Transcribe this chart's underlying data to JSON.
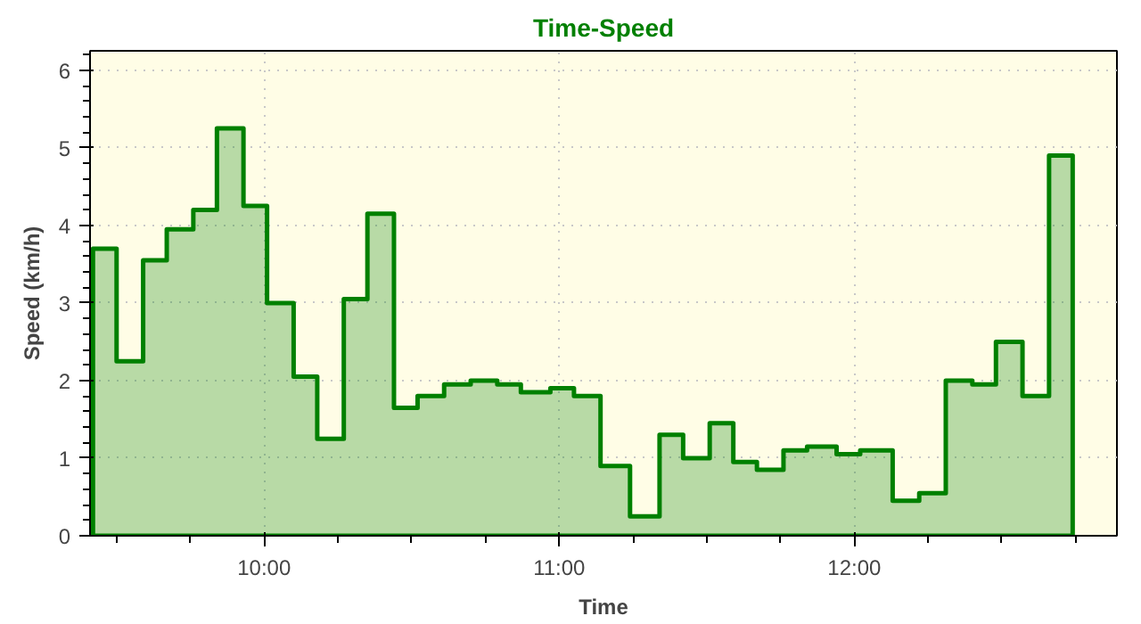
{
  "chart_data": {
    "type": "area",
    "title": "Time-Speed",
    "xlabel": "Time",
    "ylabel": "Speed (km/h)",
    "x": [
      9.42,
      9.5,
      9.59,
      9.67,
      9.76,
      9.84,
      9.93,
      10.01,
      10.1,
      10.18,
      10.27,
      10.35,
      10.44,
      10.52,
      10.61,
      10.7,
      10.79,
      10.87,
      10.97,
      11.05,
      11.14,
      11.24,
      11.34,
      11.42,
      11.51,
      11.59,
      11.67,
      11.76,
      11.84,
      11.94,
      12.02,
      12.13,
      12.22,
      12.31,
      12.4,
      12.48,
      12.57,
      12.66,
      12.74
    ],
    "series": [
      {
        "color": "#008000",
        "values": [
          3.7,
          2.25,
          3.55,
          3.95,
          4.2,
          5.25,
          4.25,
          3.0,
          2.05,
          1.25,
          3.05,
          4.15,
          1.65,
          1.8,
          1.95,
          2.0,
          1.95,
          1.85,
          1.9,
          1.8,
          0.9,
          0.25,
          1.3,
          1.0,
          1.45,
          0.95,
          0.85,
          1.1,
          1.15,
          1.05,
          1.1,
          0.45,
          0.55,
          2.0,
          1.95,
          2.5,
          1.8,
          4.9,
          4.9
        ]
      }
    ],
    "xlim": [
      9.41,
      12.89
    ],
    "xticks": [
      {
        "value": 10,
        "label": "10:00"
      },
      {
        "value": 11,
        "label": "11:00"
      },
      {
        "value": 12,
        "label": "12:00"
      }
    ],
    "ylim": [
      0,
      6.25
    ],
    "yticks": [
      0,
      1,
      2,
      3,
      4,
      5,
      6
    ],
    "grid": true
  }
}
